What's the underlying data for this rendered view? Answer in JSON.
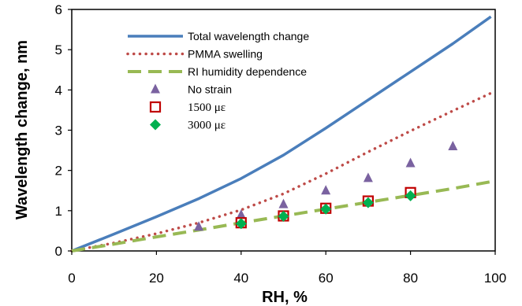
{
  "chart_data": {
    "type": "line",
    "xlabel": "RH, %",
    "ylabel": "Wavelength change, nm",
    "xlim": [
      0,
      100
    ],
    "ylim": [
      0,
      6
    ],
    "x_ticks": [
      0,
      20,
      40,
      60,
      80,
      100
    ],
    "y_ticks": [
      0,
      1,
      2,
      3,
      4,
      5,
      6
    ],
    "grid": false,
    "legend_position": "top-left",
    "series": [
      {
        "name": "Total wavelength change",
        "kind": "line",
        "style": "solid",
        "color": "#4a7ebb",
        "x": [
          0,
          10,
          20,
          30,
          40,
          50,
          60,
          70,
          80,
          90,
          99
        ],
        "y": [
          0,
          0.42,
          0.85,
          1.3,
          1.8,
          2.38,
          3.05,
          3.75,
          4.45,
          5.15,
          5.82
        ]
      },
      {
        "name": "PMMA swelling",
        "kind": "line",
        "style": "dotted",
        "color": "#be4b48",
        "x": [
          0,
          10,
          20,
          30,
          40,
          50,
          60,
          70,
          80,
          90,
          99
        ],
        "y": [
          0,
          0.2,
          0.43,
          0.7,
          1.02,
          1.42,
          1.92,
          2.46,
          2.98,
          3.48,
          3.92
        ]
      },
      {
        "name": "RI humidity dependence",
        "kind": "line",
        "style": "dashed",
        "color": "#98b954",
        "x": [
          0,
          10,
          20,
          30,
          40,
          50,
          60,
          70,
          80,
          90,
          99
        ],
        "y": [
          0,
          0.17,
          0.35,
          0.52,
          0.7,
          0.87,
          1.04,
          1.21,
          1.38,
          1.55,
          1.72
        ]
      },
      {
        "name": "No strain",
        "kind": "marker",
        "marker": "triangle",
        "color": "#7a62a0",
        "x": [
          30,
          40,
          50,
          60,
          70,
          80,
          90
        ],
        "y": [
          0.6,
          0.9,
          1.16,
          1.5,
          1.81,
          2.18,
          2.6
        ]
      },
      {
        "name": "1500 με",
        "kind": "marker",
        "marker": "square",
        "color": "#c00000",
        "x": [
          40,
          50,
          60,
          70,
          80
        ],
        "y": [
          0.7,
          0.87,
          1.06,
          1.24,
          1.45
        ]
      },
      {
        "name": "3000 με",
        "kind": "marker",
        "marker": "diamond",
        "color": "#00b050",
        "x": [
          40,
          50,
          60,
          70,
          80
        ],
        "y": [
          0.68,
          0.86,
          1.04,
          1.2,
          1.37
        ]
      }
    ]
  }
}
